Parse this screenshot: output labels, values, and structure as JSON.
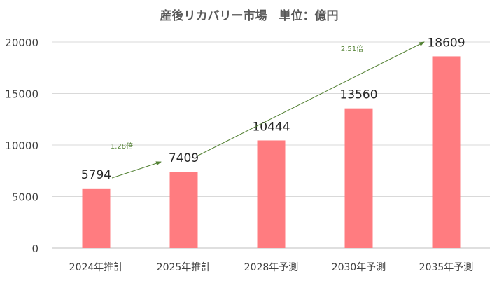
{
  "chart_data": {
    "type": "bar",
    "title": "産後リカバリー市場　単位：億円",
    "categories": [
      "2024年推計",
      "2025年推計",
      "2028年予測",
      "2030年予測",
      "2035年予測"
    ],
    "values": [
      5794,
      7409,
      10444,
      13560,
      18609
    ],
    "data_labels": [
      "5794",
      "7409",
      "10444",
      "13560",
      "18609"
    ],
    "ylim": [
      0,
      20000
    ],
    "yticks": [
      "0",
      "5000",
      "10000",
      "15000",
      "20000"
    ],
    "grid": true,
    "bar_color": "#FF7C80",
    "annotations": [
      {
        "text": "1.28倍",
        "from": "2024年推計",
        "to": "2025年推計",
        "color": "#548235"
      },
      {
        "text": "2.51倍",
        "from": "2025年推計",
        "to": "2035年予測",
        "color": "#548235"
      }
    ]
  }
}
